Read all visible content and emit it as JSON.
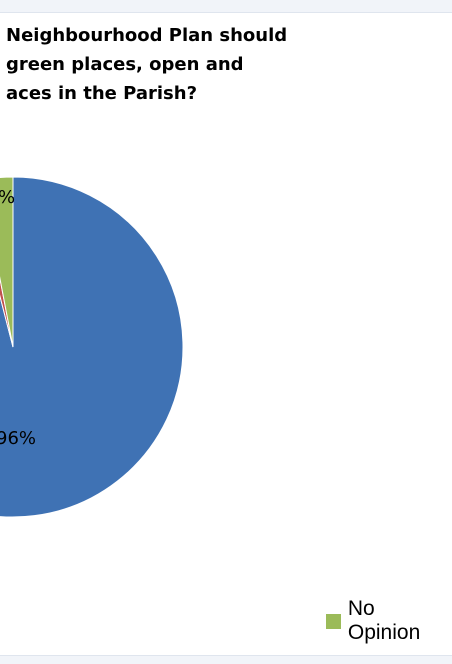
{
  "chart_data": {
    "type": "pie",
    "title": "Neighbourhood Plan should\ngreen places, open and\naces in the Parish?",
    "slices": [
      {
        "name": "",
        "value": 96,
        "label": "96%",
        "color": "#3f72b4"
      },
      {
        "name": "",
        "value": 1,
        "label": "",
        "color": "#c0504d"
      },
      {
        "name": "No Opinion",
        "value": 3,
        "label": "%",
        "color": "#9bbb59"
      }
    ],
    "legend": {
      "position": "bottom",
      "items": [
        {
          "label": "No Opinion",
          "color": "#9bbb59"
        }
      ]
    }
  }
}
